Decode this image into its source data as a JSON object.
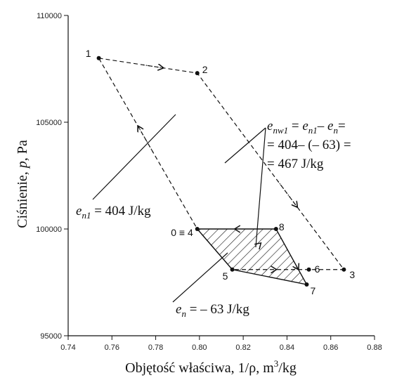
{
  "chart_data": {
    "type": "scatter",
    "xlabel_main": "Objętość właściwa, 1/ρ, m",
    "xlabel_sup": "3",
    "xlabel_end": "/kg",
    "ylabel_main": "Ciśnienie, ",
    "ylabel_var": "p",
    "ylabel_unit": ", Pa",
    "xlim": [
      0.74,
      0.88
    ],
    "ylim": [
      95000,
      110000
    ],
    "xticks": [
      "0.74",
      "0.76",
      "0.78",
      "0.80",
      "0.82",
      "0.84",
      "0.86",
      "0.88"
    ],
    "yticks": [
      "95000",
      "100000",
      "105000",
      "110000"
    ],
    "points": [
      {
        "label": "1",
        "x": 0.754,
        "y": 108000
      },
      {
        "label": "2",
        "x": 0.799,
        "y": 107300
      },
      {
        "label": "3",
        "x": 0.866,
        "y": 98100
      },
      {
        "label": "0 ≡ 4",
        "x": 0.799,
        "y": 100000
      },
      {
        "label": "5",
        "x": 0.815,
        "y": 98100
      },
      {
        "label": "6",
        "x": 0.85,
        "y": 98100
      },
      {
        "label": "7",
        "x": 0.849,
        "y": 97400
      },
      {
        "label": "8",
        "x": 0.835,
        "y": 100000
      }
    ],
    "outer_cycle": [
      "1",
      "2",
      "3",
      "5",
      "0 ≡ 4",
      "1"
    ],
    "inner_cycle": [
      "0 ≡ 4",
      "8",
      "7",
      "5",
      "0 ≡ 4"
    ],
    "annotations": {
      "en1": {
        "sym": "e",
        "sub": "n1",
        "text": " = 404 J/kg"
      },
      "en": {
        "sym": "e",
        "sub": "n",
        "text": " = – 63 J/kg"
      },
      "enw1_line1": {
        "sym": "e",
        "sub": "nw1",
        "eq": " = ",
        "sym2": "e",
        "sub2": "n1",
        "mid": "– ",
        "sym3": "e",
        "sub3": "n",
        "end": "="
      },
      "enw1_line2": "= 404– (– 63) =",
      "enw1_line3": "= 467 J/kg"
    }
  }
}
